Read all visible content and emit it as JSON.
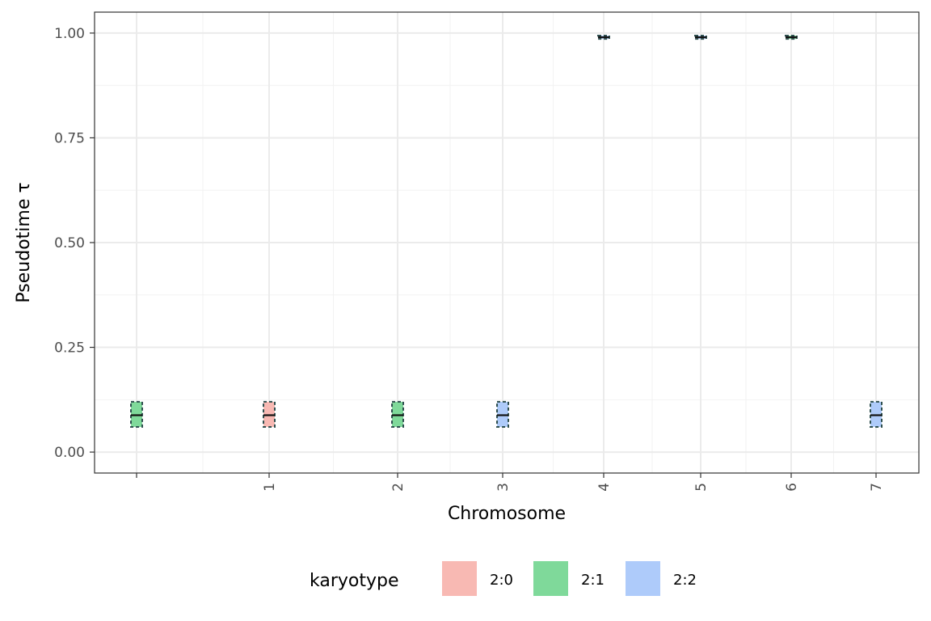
{
  "chart_data": {
    "type": "boxplot",
    "xlabel": "Chromosome",
    "ylabel": "Pseudotime τ",
    "ylim": [
      -0.05,
      1.05
    ],
    "yticks": [
      "0.00",
      "0.25",
      "0.50",
      "0.75",
      "1.00"
    ],
    "ytick_values": [
      0,
      0.25,
      0.5,
      0.75,
      1.0
    ],
    "categories": [
      "",
      "1",
      "2",
      "3",
      "4",
      "5",
      "6",
      "7"
    ],
    "grid": true,
    "legend": {
      "title": "karyotype",
      "position": "bottom",
      "entries": [
        {
          "label": "2:0",
          "color": "#F8B9B3"
        },
        {
          "label": "2:1",
          "color": "#7FD99A"
        },
        {
          "label": "2:2",
          "color": "#AECBFA"
        }
      ]
    },
    "boxes": [
      {
        "x": "",
        "karyotype": "2:1",
        "lower": 0.06,
        "median": 0.088,
        "upper": 0.12
      },
      {
        "x": "1",
        "karyotype": "2:0",
        "lower": 0.06,
        "median": 0.088,
        "upper": 0.12
      },
      {
        "x": "2",
        "karyotype": "2:1",
        "lower": 0.06,
        "median": 0.088,
        "upper": 0.12
      },
      {
        "x": "3",
        "karyotype": "2:2",
        "lower": 0.06,
        "median": 0.088,
        "upper": 0.12
      },
      {
        "x": "4",
        "karyotype": "2:2",
        "lower": 0.986,
        "median": 0.99,
        "upper": 0.994
      },
      {
        "x": "5",
        "karyotype": "2:2",
        "lower": 0.986,
        "median": 0.99,
        "upper": 0.994
      },
      {
        "x": "6",
        "karyotype": "2:1",
        "lower": 0.986,
        "median": 0.99,
        "upper": 0.994
      },
      {
        "x": "7",
        "karyotype": "2:2",
        "lower": 0.06,
        "median": 0.088,
        "upper": 0.12
      }
    ]
  }
}
